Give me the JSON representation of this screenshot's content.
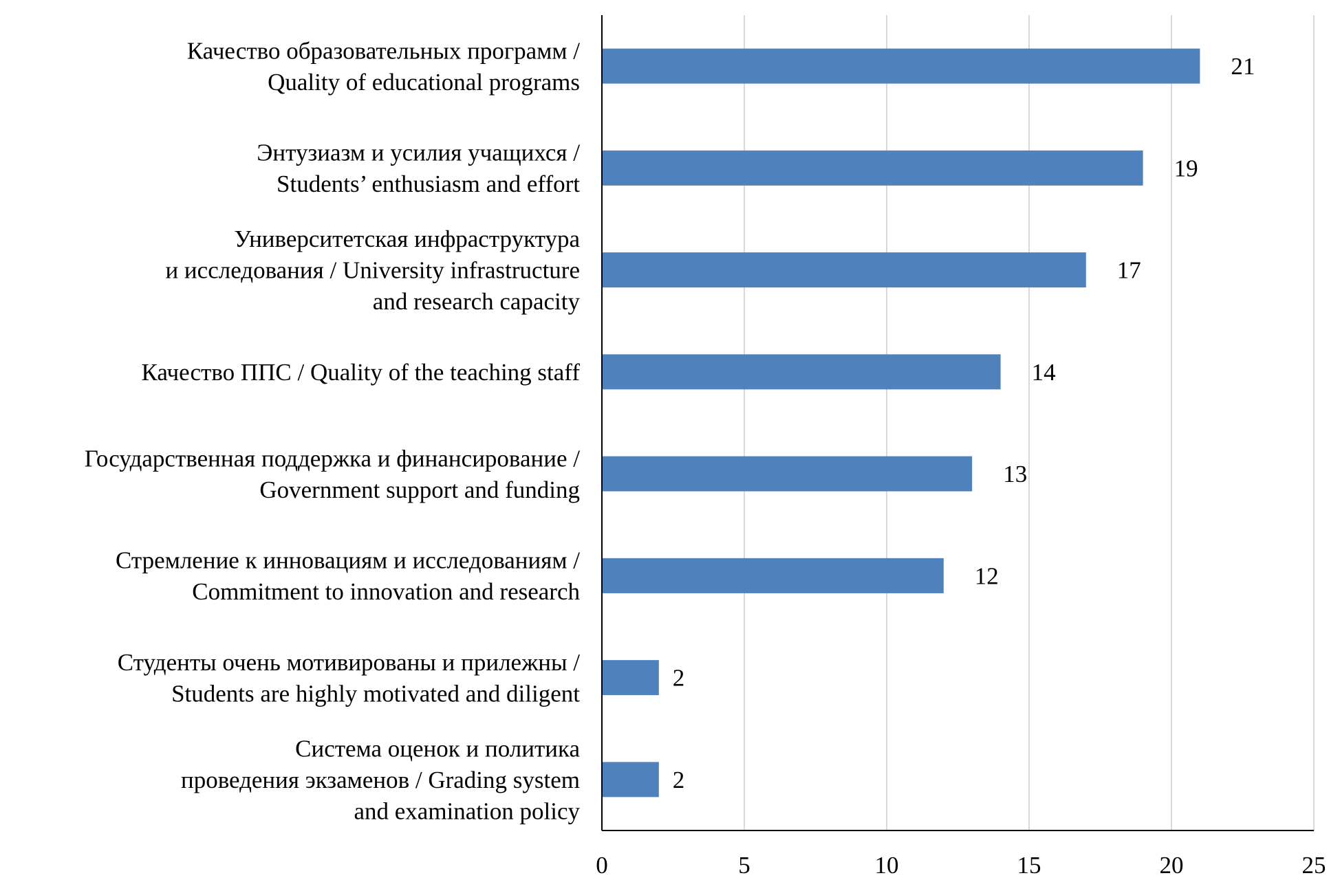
{
  "chart_data": {
    "type": "bar",
    "orientation": "horizontal",
    "title": "",
    "xlabel": "",
    "ylabel": "",
    "xlim": [
      0,
      25
    ],
    "xticks": [
      0,
      5,
      10,
      15,
      20,
      25
    ],
    "grid": true,
    "bar_color": "#4f81bd",
    "categories": [
      [
        "Качество образовательных программ /",
        "Quality of educational programs"
      ],
      [
        "Энтузиазм и усилия учащихся /",
        "Students’ enthusiasm and effort"
      ],
      [
        "Университетская инфраструктура",
        "и исследования / University infrastructure",
        "and research capacity"
      ],
      [
        "Качество ППС / Quality of the teaching staff"
      ],
      [
        "Государственная поддержка и финансирование /",
        "Government support and funding"
      ],
      [
        "Стремление к инновациям и исследованиям /",
        "Commitment to innovation and research"
      ],
      [
        "Студенты очень мотивированы и прилежны /",
        "Students are highly motivated and diligent"
      ],
      [
        "Система оценок и политика",
        "проведения экзаменов / Grading system",
        "and examination policy"
      ]
    ],
    "values": [
      21,
      19,
      17,
      14,
      13,
      12,
      2,
      2
    ]
  }
}
